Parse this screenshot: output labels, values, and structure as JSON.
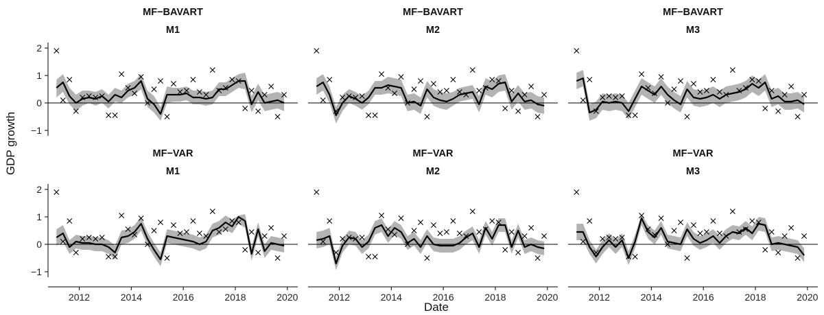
{
  "chart_data": {
    "type": "line",
    "xlabel": "Date",
    "ylabel": "GDP growth",
    "xlim": [
      2010.8,
      2020.4
    ],
    "ylim": [
      -1.2,
      2.2
    ],
    "x_ticks": [
      2012,
      2014,
      2016,
      2018,
      2020
    ],
    "x_tick_labels": [
      "2012",
      "2014",
      "2016",
      "2018",
      "2020"
    ],
    "y_ticks": [
      -1,
      0,
      1,
      2
    ],
    "y_tick_labels": [
      "−1",
      "0",
      "1",
      "2"
    ],
    "x": [
      2011.125,
      2011.375,
      2011.625,
      2011.875,
      2012.125,
      2012.375,
      2012.625,
      2012.875,
      2013.125,
      2013.375,
      2013.625,
      2013.875,
      2014.125,
      2014.375,
      2014.625,
      2014.875,
      2015.125,
      2015.375,
      2015.625,
      2015.875,
      2016.125,
      2016.375,
      2016.625,
      2016.875,
      2017.125,
      2017.375,
      2017.625,
      2017.875,
      2018.125,
      2018.375,
      2018.625,
      2018.875,
      2019.125,
      2019.375,
      2019.625,
      2019.875
    ],
    "observed": [
      1.9,
      0.1,
      0.85,
      -0.3,
      0.2,
      0.25,
      0.2,
      0.25,
      -0.45,
      -0.45,
      1.05,
      0.55,
      0.35,
      0.95,
      0.0,
      0.5,
      0.8,
      -0.5,
      0.7,
      0.4,
      0.45,
      0.85,
      0.4,
      0.3,
      1.2,
      0.45,
      0.55,
      0.85,
      0.8,
      -0.2,
      0.45,
      -0.3,
      0.3,
      0.6,
      -0.5,
      0.3
    ],
    "panels": [
      {
        "title_model": "MF−BAVART",
        "title_horizon": "M1",
        "median": [
          0.55,
          0.75,
          0.25,
          0.0,
          0.15,
          0.2,
          0.15,
          0.25,
          0.05,
          0.3,
          0.2,
          0.45,
          0.55,
          0.8,
          0.15,
          -0.05,
          -0.4,
          0.3,
          0.3,
          0.3,
          0.35,
          0.2,
          0.2,
          0.15,
          0.2,
          0.5,
          0.5,
          0.65,
          0.8,
          0.8,
          -0.05,
          0.4,
          0.0,
          0.05,
          0.1,
          0.0
        ],
        "lower": [
          0.2,
          0.4,
          -0.05,
          -0.3,
          -0.1,
          0.0,
          -0.1,
          0.0,
          -0.2,
          0.05,
          0.0,
          0.2,
          0.3,
          0.5,
          -0.15,
          -0.35,
          -0.65,
          0.0,
          0.05,
          0.05,
          0.1,
          -0.05,
          -0.05,
          -0.1,
          -0.05,
          0.25,
          0.25,
          0.4,
          0.55,
          0.5,
          -0.35,
          0.1,
          -0.3,
          -0.25,
          -0.2,
          -0.3
        ],
        "upper": [
          0.85,
          1.05,
          0.55,
          0.3,
          0.45,
          0.45,
          0.4,
          0.5,
          0.3,
          0.55,
          0.45,
          0.7,
          0.8,
          1.05,
          0.45,
          0.25,
          -0.15,
          0.6,
          0.55,
          0.55,
          0.6,
          0.45,
          0.45,
          0.4,
          0.45,
          0.75,
          0.75,
          0.9,
          1.05,
          1.1,
          0.25,
          0.7,
          0.3,
          0.35,
          0.4,
          0.3
        ]
      },
      {
        "title_model": "MF−BAVART",
        "title_horizon": "M2",
        "median": [
          0.6,
          0.75,
          0.3,
          -0.45,
          0.0,
          0.25,
          0.15,
          0.0,
          0.2,
          0.55,
          0.55,
          0.65,
          0.6,
          0.55,
          0.0,
          0.05,
          -0.1,
          0.5,
          0.2,
          0.1,
          0.05,
          0.15,
          0.3,
          0.35,
          0.4,
          -0.05,
          0.6,
          0.5,
          0.7,
          0.75,
          0.05,
          0.35,
          0.05,
          0.1,
          -0.05,
          -0.1
        ],
        "lower": [
          0.3,
          0.45,
          0.0,
          -0.75,
          -0.3,
          0.0,
          -0.1,
          -0.25,
          -0.05,
          0.3,
          0.3,
          0.35,
          0.3,
          0.25,
          -0.3,
          -0.25,
          -0.4,
          0.2,
          -0.1,
          -0.2,
          -0.25,
          -0.1,
          0.05,
          0.1,
          0.15,
          -0.35,
          0.3,
          0.2,
          0.4,
          0.45,
          -0.25,
          0.05,
          -0.25,
          -0.2,
          -0.35,
          -0.4
        ],
        "upper": [
          0.9,
          1.05,
          0.6,
          -0.15,
          0.3,
          0.5,
          0.4,
          0.25,
          0.45,
          0.8,
          0.8,
          0.95,
          0.9,
          0.85,
          0.3,
          0.35,
          0.2,
          0.8,
          0.5,
          0.4,
          0.35,
          0.4,
          0.55,
          0.6,
          0.65,
          0.25,
          0.9,
          0.8,
          1.0,
          1.05,
          0.35,
          0.65,
          0.35,
          0.4,
          0.25,
          0.2
        ]
      },
      {
        "title_model": "MF−BAVART",
        "title_horizon": "M3",
        "median": [
          0.8,
          0.9,
          -0.35,
          -0.25,
          0.05,
          0.0,
          0.05,
          0.0,
          -0.3,
          0.15,
          0.6,
          0.45,
          0.3,
          0.6,
          0.3,
          0.1,
          -0.05,
          0.5,
          0.2,
          0.15,
          0.2,
          0.3,
          0.15,
          0.3,
          0.35,
          0.4,
          0.5,
          0.7,
          0.55,
          0.75,
          0.15,
          0.25,
          0.05,
          0.05,
          0.1,
          -0.05
        ],
        "lower": [
          0.5,
          0.6,
          -0.65,
          -0.55,
          -0.25,
          -0.3,
          -0.25,
          -0.3,
          -0.6,
          -0.15,
          0.3,
          0.15,
          0.0,
          0.3,
          0.0,
          -0.2,
          -0.35,
          0.2,
          -0.1,
          -0.15,
          -0.1,
          0.0,
          -0.15,
          0.0,
          0.05,
          0.1,
          0.2,
          0.4,
          0.25,
          0.45,
          -0.15,
          -0.05,
          -0.25,
          -0.25,
          -0.2,
          -0.35
        ],
        "upper": [
          1.1,
          1.2,
          -0.05,
          0.05,
          0.35,
          0.3,
          0.35,
          0.3,
          0.0,
          0.45,
          0.9,
          0.75,
          0.6,
          0.9,
          0.6,
          0.4,
          0.25,
          0.8,
          0.5,
          0.45,
          0.5,
          0.6,
          0.45,
          0.6,
          0.65,
          0.7,
          0.8,
          1.0,
          0.85,
          1.05,
          0.45,
          0.55,
          0.35,
          0.35,
          0.4,
          0.25
        ]
      },
      {
        "title_model": "MF−VAR",
        "title_horizon": "M1",
        "median": [
          0.25,
          0.4,
          -0.1,
          0.1,
          0.05,
          0.05,
          0.0,
          0.0,
          -0.1,
          -0.3,
          0.25,
          0.3,
          0.45,
          0.75,
          0.2,
          -0.2,
          -0.55,
          0.3,
          0.25,
          0.2,
          0.15,
          0.1,
          0.0,
          0.1,
          0.5,
          0.6,
          0.8,
          0.65,
          1.0,
          0.85,
          -0.35,
          0.55,
          -0.25,
          0.05,
          0.0,
          -0.05
        ],
        "lower": [
          -0.05,
          0.1,
          -0.35,
          -0.15,
          -0.2,
          -0.2,
          -0.25,
          -0.25,
          -0.35,
          -0.55,
          0.0,
          0.05,
          0.2,
          0.5,
          -0.05,
          -0.45,
          -0.8,
          0.05,
          0.0,
          -0.05,
          -0.1,
          -0.15,
          -0.25,
          -0.15,
          0.25,
          0.35,
          0.55,
          0.4,
          0.75,
          0.6,
          -0.6,
          0.3,
          -0.5,
          -0.2,
          -0.25,
          -0.3
        ],
        "upper": [
          0.55,
          0.7,
          0.15,
          0.35,
          0.3,
          0.3,
          0.25,
          0.25,
          0.15,
          -0.05,
          0.5,
          0.55,
          0.7,
          1.0,
          0.45,
          0.05,
          -0.3,
          0.55,
          0.5,
          0.45,
          0.4,
          0.35,
          0.25,
          0.35,
          0.75,
          0.85,
          1.05,
          0.9,
          1.05,
          1.1,
          -0.1,
          0.8,
          0.0,
          0.3,
          0.25,
          0.2
        ]
      },
      {
        "title_model": "MF−VAR",
        "title_horizon": "M2",
        "median": [
          0.15,
          0.2,
          0.3,
          -0.7,
          -0.05,
          0.25,
          0.2,
          -0.1,
          0.1,
          0.6,
          0.7,
          0.3,
          0.6,
          0.45,
          0.05,
          0.2,
          -0.1,
          0.3,
          0.0,
          -0.05,
          -0.05,
          -0.05,
          0.05,
          0.25,
          0.4,
          -0.1,
          0.6,
          0.2,
          0.7,
          0.7,
          -0.1,
          0.5,
          -0.1,
          0.0,
          -0.1,
          -0.15
        ],
        "lower": [
          -0.15,
          -0.1,
          0.0,
          -0.95,
          -0.3,
          0.0,
          -0.05,
          -0.35,
          -0.15,
          0.35,
          0.45,
          0.05,
          0.35,
          0.2,
          -0.2,
          -0.05,
          -0.35,
          0.05,
          -0.25,
          -0.3,
          -0.3,
          -0.3,
          -0.2,
          0.0,
          0.15,
          -0.35,
          0.35,
          -0.05,
          0.45,
          0.45,
          -0.35,
          0.25,
          -0.35,
          -0.25,
          -0.35,
          -0.4
        ],
        "upper": [
          0.45,
          0.5,
          0.6,
          -0.45,
          0.2,
          0.5,
          0.45,
          0.15,
          0.35,
          0.85,
          0.95,
          0.55,
          0.85,
          0.7,
          0.3,
          0.45,
          0.15,
          0.55,
          0.25,
          0.2,
          0.2,
          0.2,
          0.3,
          0.5,
          0.65,
          0.15,
          0.85,
          0.45,
          0.95,
          0.95,
          0.15,
          0.75,
          0.15,
          0.25,
          0.15,
          0.1
        ]
      },
      {
        "title_model": "MF−VAR",
        "title_horizon": "M3",
        "median": [
          0.45,
          0.45,
          -0.1,
          -0.45,
          -0.1,
          0.15,
          -0.1,
          0.15,
          -0.5,
          0.1,
          0.95,
          0.45,
          0.25,
          0.6,
          0.1,
          0.05,
          0.0,
          0.55,
          0.2,
          0.05,
          0.15,
          0.3,
          0.05,
          0.3,
          0.45,
          0.4,
          0.6,
          0.4,
          0.75,
          0.7,
          0.0,
          0.05,
          0.0,
          -0.05,
          -0.1,
          -0.4
        ],
        "lower": [
          0.15,
          0.15,
          -0.35,
          -0.7,
          -0.35,
          -0.1,
          -0.35,
          -0.1,
          -0.75,
          -0.15,
          0.7,
          0.2,
          0.0,
          0.35,
          -0.15,
          -0.2,
          -0.25,
          0.3,
          -0.05,
          -0.2,
          -0.1,
          0.05,
          -0.2,
          0.05,
          0.2,
          0.15,
          0.35,
          0.15,
          0.5,
          0.45,
          -0.25,
          -0.2,
          -0.25,
          -0.3,
          -0.35,
          -0.65
        ],
        "upper": [
          0.75,
          0.75,
          0.15,
          -0.2,
          0.15,
          0.4,
          0.15,
          0.4,
          -0.25,
          0.35,
          1.1,
          0.7,
          0.5,
          0.85,
          0.35,
          0.3,
          0.25,
          0.8,
          0.45,
          0.3,
          0.4,
          0.55,
          0.3,
          0.55,
          0.7,
          0.65,
          0.85,
          0.65,
          1.0,
          0.95,
          0.25,
          0.3,
          0.25,
          0.2,
          0.15,
          -0.15
        ]
      }
    ]
  }
}
